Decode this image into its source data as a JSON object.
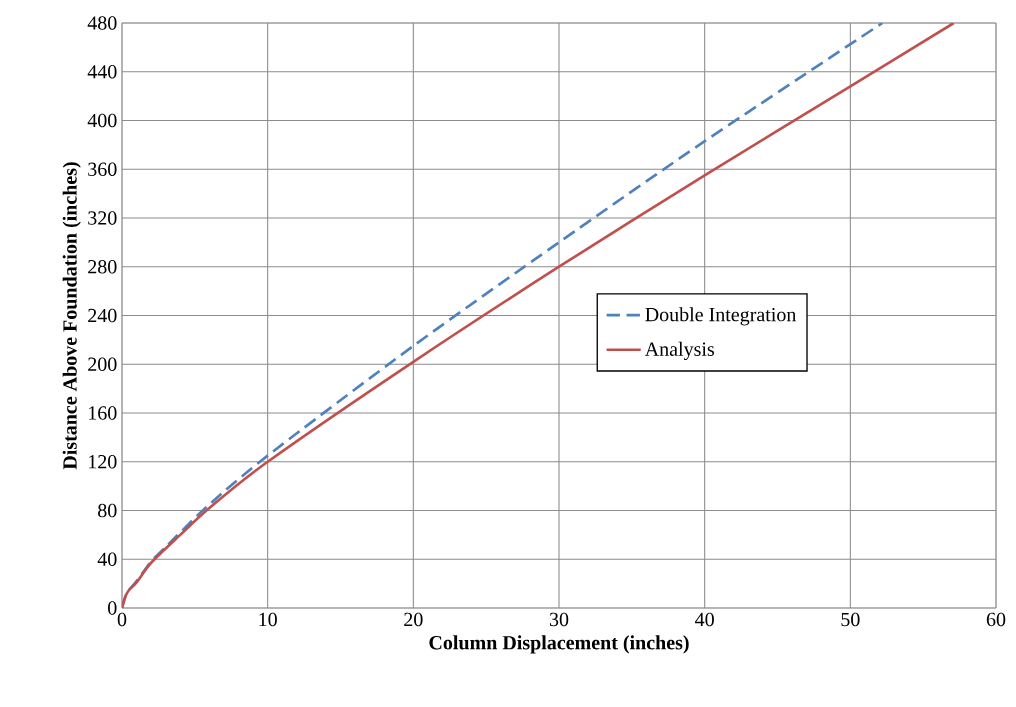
{
  "chart_data": {
    "type": "line",
    "xlabel": "Column Displacement (inches)",
    "ylabel": "Distance Above Foundation (inches)",
    "xlim": [
      0,
      60
    ],
    "ylim": [
      0,
      480
    ],
    "xticks": [
      0,
      10,
      20,
      30,
      40,
      50,
      60
    ],
    "yticks": [
      0,
      40,
      80,
      120,
      160,
      200,
      240,
      280,
      320,
      360,
      400,
      440,
      480
    ],
    "grid": true,
    "legend": "right",
    "series": [
      {
        "name": "Double Integration",
        "color": "#4f81bd",
        "line_style": "dashed",
        "x": [
          0,
          0.25,
          0.5,
          1,
          2,
          3,
          4,
          6,
          10,
          20,
          30,
          40,
          52.2
        ],
        "values": [
          0,
          10,
          15,
          22,
          38,
          50,
          62,
          85,
          125,
          215,
          300,
          383,
          480
        ]
      },
      {
        "name": "Analysis",
        "color": "#c0504d",
        "line_style": "solid",
        "x": [
          0,
          0.25,
          0.5,
          1,
          2,
          4,
          6,
          10,
          20,
          30,
          40,
          50,
          57.1
        ],
        "values": [
          0,
          10,
          15,
          21,
          37,
          60,
          82,
          120,
          202,
          280,
          355,
          428,
          480
        ]
      }
    ]
  }
}
